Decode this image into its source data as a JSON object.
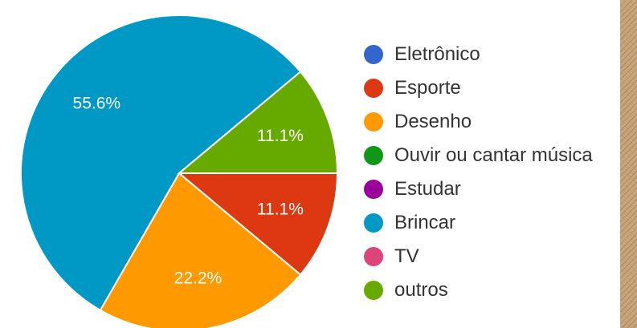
{
  "chart_data": {
    "type": "pie",
    "title": "",
    "legend_position": "right",
    "series": [
      {
        "name": "Eletrônico",
        "value": 0,
        "color": "#3366cc"
      },
      {
        "name": "Esporte",
        "value": 11.1,
        "color": "#dc3912"
      },
      {
        "name": "Desenho",
        "value": 22.2,
        "color": "#ff9900"
      },
      {
        "name": "Ouvir ou cantar música",
        "value": 0,
        "color": "#109618"
      },
      {
        "name": "Estudar",
        "value": 0,
        "color": "#990099"
      },
      {
        "name": "Brincar",
        "value": 55.6,
        "color": "#0099c6"
      },
      {
        "name": "TV",
        "value": 0,
        "color": "#dd4477"
      },
      {
        "name": "outros",
        "value": 11.1,
        "color": "#66aa00"
      }
    ],
    "data_labels": [
      "11.1%",
      "22.2%",
      "55.6%",
      "11.1%"
    ]
  }
}
